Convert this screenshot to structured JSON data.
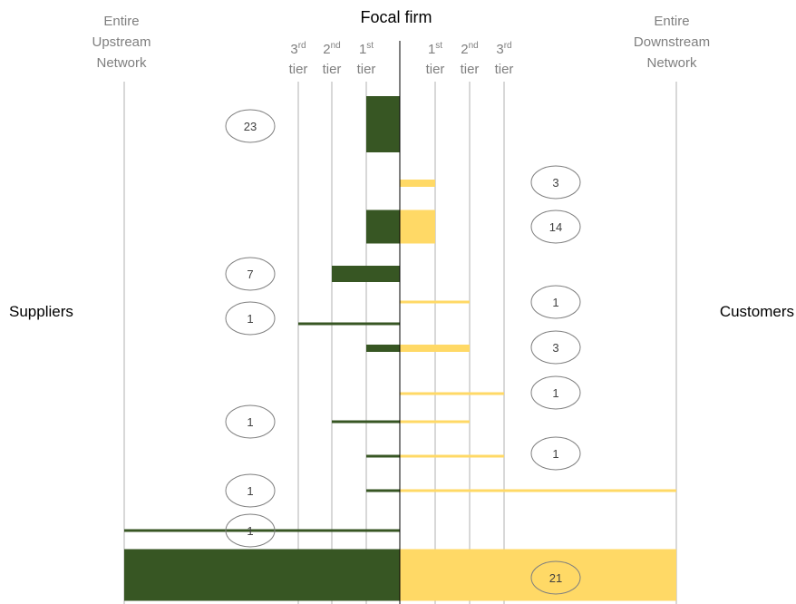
{
  "title": "Focal firm",
  "upstream_label": [
    "Entire",
    "Upstream",
    "Network"
  ],
  "downstream_label": [
    "Entire",
    "Downstream",
    "Network"
  ],
  "left_side": "Suppliers",
  "right_side": "Customers",
  "tier_word": "tier",
  "upstream_tiers": [
    {
      "num": "3",
      "suffix": "rd"
    },
    {
      "num": "2",
      "suffix": "nd"
    },
    {
      "num": "1",
      "suffix": "st"
    }
  ],
  "downstream_tiers": [
    {
      "num": "1",
      "suffix": "st"
    },
    {
      "num": "2",
      "suffix": "nd"
    },
    {
      "num": "3",
      "suffix": "rd"
    }
  ],
  "colors": {
    "supplier": "#375623",
    "customer": "#ffd966",
    "gridline": "#bfbfbf",
    "focal_line": "#000000"
  },
  "chart_data": {
    "type": "diagram",
    "levels": [
      "Entire Upstream Network",
      "3rd tier",
      "2nd tier",
      "1st tier",
      "Focal firm",
      "1st tier",
      "2nd tier",
      "3rd tier",
      "Entire Downstream Network"
    ],
    "rows": [
      {
        "count": "23",
        "count_side": "left",
        "upstream_reach": "1st tier",
        "downstream_reach": null,
        "weight": 23
      },
      {
        "count": "3",
        "count_side": "right",
        "upstream_reach": null,
        "downstream_reach": "1st tier",
        "weight": 3
      },
      {
        "count": "14",
        "count_side": "right",
        "upstream_reach": "1st tier",
        "downstream_reach": "1st tier",
        "weight": 14
      },
      {
        "count": "7",
        "count_side": "left",
        "upstream_reach": "2nd tier",
        "downstream_reach": null,
        "weight": 7
      },
      {
        "count": "1",
        "count_side": "right",
        "upstream_reach": null,
        "downstream_reach": "2nd tier",
        "weight": 1
      },
      {
        "count": "1",
        "count_side": "left",
        "upstream_reach": "3rd tier",
        "downstream_reach": null,
        "weight": 1
      },
      {
        "count": "3",
        "count_side": "right",
        "upstream_reach": "1st tier",
        "downstream_reach": "2nd tier",
        "weight": 3
      },
      {
        "count": "1",
        "count_side": "right",
        "upstream_reach": null,
        "downstream_reach": "3rd tier",
        "weight": 1
      },
      {
        "count": "1",
        "count_side": "left",
        "upstream_reach": "2nd tier",
        "downstream_reach": "2nd tier",
        "weight": 1
      },
      {
        "count": "1",
        "count_side": "right",
        "upstream_reach": "1st tier",
        "downstream_reach": "3rd tier",
        "weight": 1
      },
      {
        "count": "1",
        "count_side": "left",
        "upstream_reach": "1st tier",
        "downstream_reach": "Entire Downstream Network",
        "weight": 1
      },
      {
        "count": "1",
        "count_side": "left",
        "upstream_reach": "Entire Upstream Network",
        "downstream_reach": null,
        "weight": 1
      },
      {
        "count": "21",
        "count_side": "right",
        "upstream_reach": "Entire Upstream Network",
        "downstream_reach": "Entire Downstream Network",
        "weight": 21
      }
    ]
  }
}
